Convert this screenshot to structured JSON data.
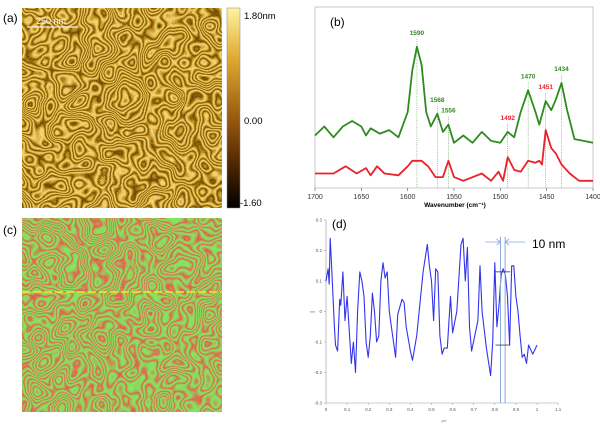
{
  "panels": {
    "a": {
      "label": "(a)",
      "scale_bar": "250 nm",
      "colorbar": {
        "max": "1.80nm",
        "mid": "0.00",
        "min": "-1.60"
      }
    },
    "b": {
      "label": "(b)"
    },
    "c": {
      "label": "(c)"
    },
    "d": {
      "label": "(d)",
      "annotation": "10 nm"
    }
  },
  "colors": {
    "green_spectrum": "#2e8b1e",
    "red_spectrum": "#e8232a",
    "profile": "#3333ee",
    "afm_bright": "#f5d24a",
    "afm_dark": "#1a0c00",
    "map_green": "#33dd22",
    "map_red": "#cc1a1a",
    "cursor_line": "#88aadd",
    "yellow_line": "#eeee22"
  },
  "chart_data": [
    {
      "type": "line",
      "panel": "(b)",
      "xlabel": "Wavenumber (cm⁻¹)",
      "ylabel": "",
      "xlim": [
        1700,
        1400
      ],
      "ylim": [
        0,
        100
      ],
      "x_reversed": true,
      "xticks": [
        "1700",
        "1650",
        "1600",
        "1550",
        "1500",
        "1450",
        "1400"
      ],
      "grid": false,
      "series": [
        {
          "color": "#2e8b1e",
          "x": [
            1700,
            1690,
            1680,
            1670,
            1660,
            1650,
            1645,
            1640,
            1630,
            1620,
            1610,
            1600,
            1595,
            1590,
            1585,
            1580,
            1575,
            1568,
            1562,
            1556,
            1550,
            1540,
            1530,
            1520,
            1510,
            1500,
            1492,
            1485,
            1478,
            1470,
            1462,
            1458,
            1451,
            1445,
            1440,
            1434,
            1428,
            1420,
            1410,
            1400
          ],
          "y": [
            29,
            34,
            28,
            34,
            37,
            34,
            29,
            33,
            30,
            32,
            28,
            42,
            65,
            78,
            68,
            42,
            34,
            41,
            31,
            35,
            25,
            29,
            25,
            31,
            26,
            25,
            31,
            28,
            42,
            54,
            42,
            35,
            48,
            43,
            49,
            58,
            43,
            27,
            26,
            25
          ]
        },
        {
          "color": "#e8232a",
          "x": [
            1700,
            1680,
            1667,
            1655,
            1645,
            1640,
            1633,
            1625,
            1610,
            1600,
            1595,
            1585,
            1578,
            1570,
            1562,
            1556,
            1550,
            1540,
            1520,
            1510,
            1502,
            1497,
            1492,
            1485,
            1478,
            1470,
            1462,
            1458,
            1455,
            1451,
            1445,
            1440,
            1434,
            1425,
            1415,
            1400
          ],
          "y": [
            8,
            8,
            12,
            8,
            11,
            7,
            12,
            8,
            7,
            12,
            15,
            15,
            12,
            6,
            6,
            15,
            6,
            4,
            8,
            4,
            9,
            4,
            17,
            10,
            9,
            15,
            14,
            15,
            13,
            32,
            22,
            19,
            13,
            8,
            4,
            4
          ]
        }
      ],
      "annotations": [
        {
          "text": "1590",
          "x": 1590,
          "color": "#2e8b1e"
        },
        {
          "text": "1568",
          "x": 1568,
          "color": "#2e8b1e"
        },
        {
          "text": "1556",
          "x": 1556,
          "color": "#2e8b1e"
        },
        {
          "text": "1492",
          "x": 1492,
          "color": "#e8232a"
        },
        {
          "text": "1470",
          "x": 1470,
          "color": "#2e8b1e"
        },
        {
          "text": "1451",
          "x": 1451,
          "color": "#e8232a"
        },
        {
          "text": "1434",
          "x": 1434,
          "color": "#2e8b1e"
        }
      ]
    },
    {
      "type": "line",
      "panel": "(d)",
      "xlabel": "µm",
      "ylabel": "nm",
      "xlim": [
        0,
        1.1
      ],
      "ylim": [
        -0.3,
        0.3
      ],
      "xticks": [
        "0",
        "0.1",
        "0.2",
        "0.3",
        "0.4",
        "0.5",
        "0.6",
        "0.7",
        "0.8",
        "0.9",
        "1",
        "1.1"
      ],
      "yticks": [
        "0.3",
        "0.2",
        "0.1",
        "0",
        "-0.1",
        "-0.2",
        "-0.3"
      ],
      "grid": false,
      "series": [
        {
          "color": "#3333ee",
          "x": [
            0,
            0.01,
            0.015,
            0.02,
            0.025,
            0.03,
            0.04,
            0.045,
            0.055,
            0.065,
            0.07,
            0.08,
            0.09,
            0.1,
            0.11,
            0.12,
            0.13,
            0.14,
            0.15,
            0.16,
            0.17,
            0.18,
            0.19,
            0.2,
            0.21,
            0.22,
            0.23,
            0.24,
            0.25,
            0.26,
            0.27,
            0.28,
            0.29,
            0.3,
            0.31,
            0.33,
            0.34,
            0.36,
            0.37,
            0.38,
            0.4,
            0.41,
            0.43,
            0.46,
            0.48,
            0.49,
            0.5,
            0.51,
            0.52,
            0.53,
            0.54,
            0.55,
            0.56,
            0.575,
            0.59,
            0.6,
            0.62,
            0.64,
            0.65,
            0.66,
            0.67,
            0.68,
            0.69,
            0.72,
            0.73,
            0.74,
            0.76,
            0.78,
            0.79,
            0.8,
            0.81,
            0.82,
            0.83,
            0.84,
            0.85,
            0.86,
            0.87,
            0.88,
            0.89,
            0.9,
            0.91,
            0.92,
            0.93,
            0.94,
            0.95,
            0.96,
            0.98,
            1.0
          ],
          "y": [
            0.1,
            0.14,
            0.09,
            0.24,
            0.17,
            0.1,
            -0.05,
            -0.11,
            -0.13,
            0.04,
            0.02,
            0.13,
            -0.03,
            0.05,
            -0.06,
            -0.17,
            -0.1,
            -0.2,
            0.0,
            0.13,
            0.1,
            0.05,
            -0.1,
            -0.15,
            -0.08,
            0.06,
            0.0,
            -0.1,
            -0.08,
            0.1,
            0.16,
            0.11,
            0.13,
            0.0,
            -0.05,
            -0.15,
            -0.01,
            0.04,
            0.03,
            -0.05,
            -0.13,
            -0.16,
            -0.08,
            0.13,
            0.22,
            0.15,
            0.1,
            -0.03,
            0.14,
            0.13,
            -0.08,
            -0.14,
            -0.12,
            -0.12,
            0.05,
            -0.07,
            0.0,
            0.22,
            0.24,
            0.1,
            0.21,
            -0.05,
            -0.13,
            -0.03,
            0.15,
            0.0,
            -0.12,
            -0.21,
            -0.1,
            0.16,
            -0.05,
            0.02,
            0.12,
            0.14,
            0.12,
            0.05,
            -0.11,
            0.15,
            0.15,
            0.05,
            0.0,
            -0.08,
            -0.15,
            -0.14,
            -0.17,
            -0.11,
            -0.14,
            -0.11
          ]
        }
      ],
      "markers": {
        "cursor_x": [
          0.827,
          0.849
        ],
        "cross_y": [
          0.13,
          -0.11
        ]
      }
    }
  ]
}
